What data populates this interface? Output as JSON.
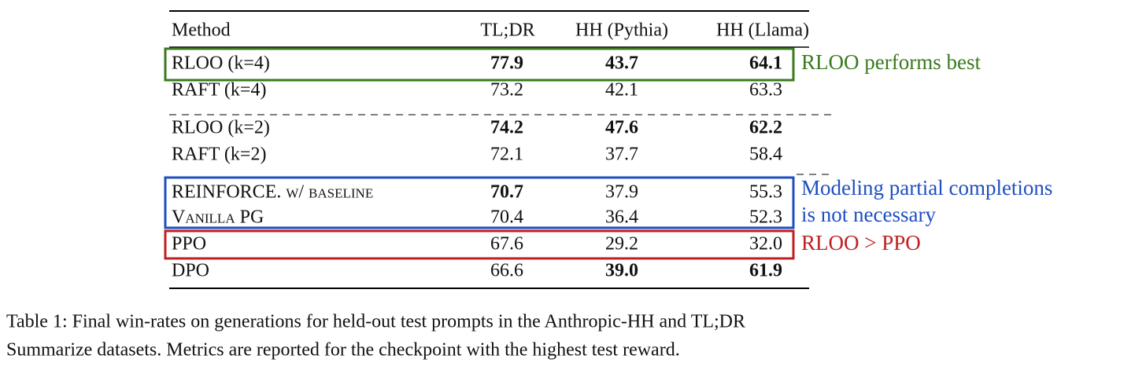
{
  "table": {
    "header": [
      "Method",
      "TL;DR",
      "HH (Pythia)",
      "HH (Llama)"
    ],
    "rows": [
      [
        "RLOO (k=4)",
        "77.9",
        "43.7",
        "64.1"
      ],
      [
        "RAFT (k=4)",
        "73.2",
        "42.1",
        "63.3"
      ],
      [
        "RLOO (k=2)",
        "74.2",
        "47.6",
        "62.2"
      ],
      [
        "RAFT (k=2)",
        "72.1",
        "37.7",
        "58.4"
      ],
      [
        "REINFORCE. w/ baseline",
        "70.7",
        "37.9",
        "55.3"
      ],
      [
        "Vanilla PG",
        "70.4",
        "36.4",
        "52.3"
      ],
      [
        "PPO",
        "67.6",
        "29.2",
        "32.0"
      ],
      [
        "DPO",
        "66.6",
        "39.0",
        "61.9"
      ]
    ]
  },
  "annotations": [
    [
      "RLOO performs best"
    ],
    [
      "Modeling partial completions",
      "is not necessary"
    ],
    [
      "RLOO > PPO"
    ]
  ],
  "caption": [
    "Table 1: Final win-rates on generations for held-out test prompts in the Anthropic-HH and TL;DR",
    "Summarize datasets. Metrics are reported for the checkpoint with the highest test reward."
  ]
}
